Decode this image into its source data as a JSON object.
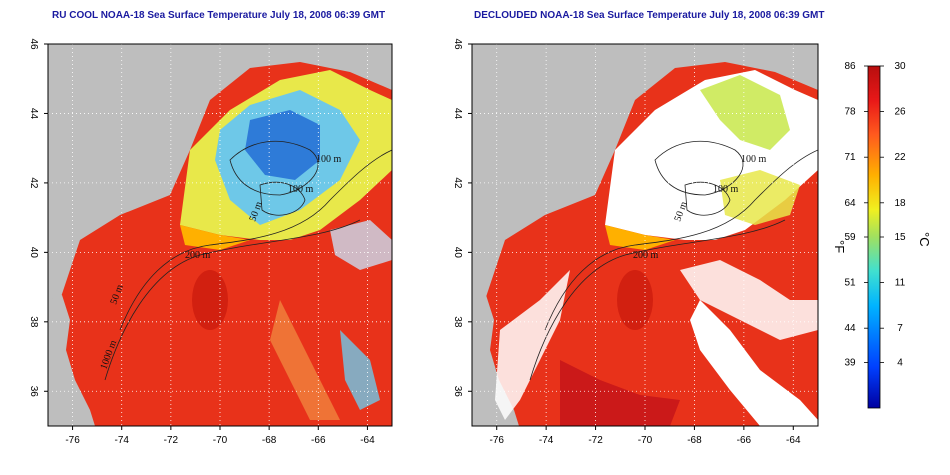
{
  "chart_data": [
    {
      "type": "heatmap",
      "title": "RU COOL NOAA-18 Sea Surface Temperature July 18, 2008 06:39 GMT",
      "xlabel": "",
      "ylabel": "",
      "xlim": [
        -77,
        -63
      ],
      "ylim": [
        35,
        46
      ],
      "xticks": [
        -76,
        -74,
        -72,
        -70,
        -68,
        -66,
        -64
      ],
      "yticks": [
        36,
        38,
        40,
        42,
        44,
        46
      ],
      "grid": true,
      "contour_labels": [
        "100 m",
        "100 m",
        "50 m",
        "200 m",
        "50 m",
        "1000 m"
      ]
    },
    {
      "type": "heatmap",
      "title": "DECLOUDED NOAA-18 Sea Surface Temperature July 18, 2008 06:39 GMT",
      "xlabel": "",
      "ylabel": "",
      "xlim": [
        -77,
        -63
      ],
      "ylim": [
        35,
        46
      ],
      "xticks": [
        -76,
        -74,
        -72,
        -70,
        -68,
        -66,
        -64
      ],
      "yticks": [
        36,
        38,
        40,
        42,
        44,
        46
      ],
      "grid": true,
      "contour_labels": [
        "100 m",
        "100 m",
        "50 m",
        "200 m"
      ]
    }
  ],
  "colorbar": {
    "celsius_unit": "°C",
    "fahrenheit_unit": "°F",
    "celsius_ticks": [
      30,
      26,
      22,
      18,
      15,
      11,
      7,
      4
    ],
    "fahrenheit_ticks": [
      86,
      78,
      71,
      64,
      59,
      51,
      44,
      39
    ],
    "celsius_range": [
      0,
      30
    ],
    "colors": [
      "#0000a0",
      "#0040ff",
      "#00b4ff",
      "#40e0d0",
      "#a0e060",
      "#f0f020",
      "#ffb000",
      "#ff5a1e",
      "#e81818",
      "#b80e0e"
    ]
  },
  "colors": {
    "land": "#bebebe",
    "clouds_masked": "#ffffff",
    "warm_water": "#e8321a",
    "title_text": "#1a1aa0"
  }
}
